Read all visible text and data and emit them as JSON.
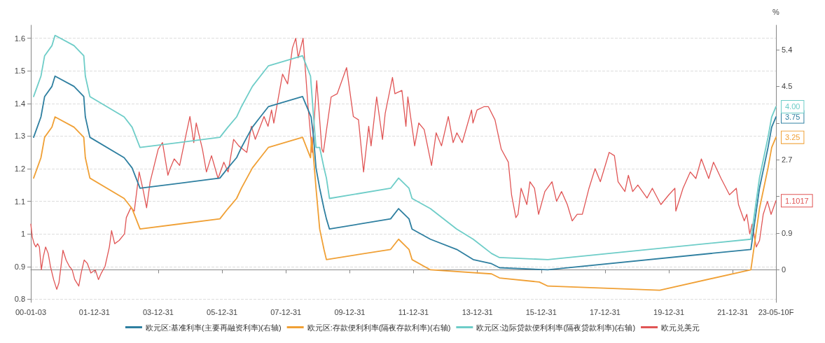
{
  "chart_data": {
    "type": "line",
    "y2label": "%",
    "legend": "bottom",
    "grid": "y",
    "marker": "none",
    "line_style": "solid",
    "xlim": [
      "2000-01-03",
      "2023-05-10"
    ],
    "xticks": [
      {
        "value": "2000-01-03",
        "label": "00-01-03"
      },
      {
        "value": "2001-12-31",
        "label": "01-12-31"
      },
      {
        "value": "2003-12-31",
        "label": "03-12-31"
      },
      {
        "value": "2005-12-31",
        "label": "05-12-31"
      },
      {
        "value": "2007-12-31",
        "label": "07-12-31"
      },
      {
        "value": "2009-12-31",
        "label": "09-12-31"
      },
      {
        "value": "2011-12-31",
        "label": "11-12-31"
      },
      {
        "value": "2013-12-31",
        "label": "13-12-31"
      },
      {
        "value": "2015-12-31",
        "label": "15-12-31"
      },
      {
        "value": "2017-12-31",
        "label": "17-12-31"
      },
      {
        "value": "2019-12-31",
        "label": "19-12-31"
      },
      {
        "value": "2021-12-31",
        "label": "21-12-31"
      },
      {
        "value": "2023-05-10",
        "label": "23-05-10F"
      }
    ],
    "ylim": [
      0.79,
      1.64
    ],
    "yticks": [
      0.8,
      0.9,
      1,
      1.1,
      1.2,
      1.3,
      1.4,
      1.5,
      1.6
    ],
    "y2lim": [
      -0.8,
      6.0
    ],
    "y2ticks": [
      0,
      0.9,
      {
        "value": 1.8,
        "label": null
      },
      2.7,
      {
        "value": 3.6,
        "label": null
      },
      4.5,
      5.4
    ],
    "series": [
      {
        "name": "欧元区:基准利率(主要再融资利率)(右轴)",
        "color": "#2e7fa0",
        "axis": "y2",
        "x": [
          "2000-02-04",
          "2000-03-17",
          "2000-04-28",
          "2000-06-09",
          "2000-09-01",
          "2000-10-06",
          "2001-05-11",
          "2001-08-31",
          "2001-09-18",
          "2001-11-09",
          "2002-12-06",
          "2003-03-07",
          "2003-06-06",
          "2005-12-06",
          "2006-03-08",
          "2006-06-15",
          "2006-08-09",
          "2006-10-11",
          "2006-12-13",
          "2007-03-14",
          "2007-06-13",
          "2008-07-09",
          "2008-10-15",
          "2008-11-12",
          "2008-12-10",
          "2009-01-21",
          "2009-03-11",
          "2009-04-08",
          "2009-05-13",
          "2011-04-13",
          "2011-07-13",
          "2011-11-09",
          "2011-12-14",
          "2012-07-11",
          "2013-05-08",
          "2013-11-13",
          "2014-06-11",
          "2014-09-10",
          "2016-03-16",
          "2022-07-27",
          "2022-09-14",
          "2022-11-02",
          "2022-12-21",
          "2023-02-08",
          "2023-03-22",
          "2023-05-10"
        ],
        "values": [
          3.25,
          3.5,
          3.75,
          4.25,
          4.5,
          4.75,
          4.5,
          4.25,
          3.75,
          3.25,
          2.75,
          2.5,
          2.0,
          2.25,
          2.5,
          2.75,
          3.0,
          3.25,
          3.5,
          3.75,
          4.0,
          4.25,
          3.75,
          3.25,
          2.5,
          2.0,
          1.5,
          1.25,
          1.0,
          1.25,
          1.5,
          1.25,
          1.0,
          0.75,
          0.5,
          0.25,
          0.15,
          0.05,
          0.0,
          0.5,
          1.25,
          2.0,
          2.5,
          3.0,
          3.5,
          3.75
        ],
        "value_labels": [
          null,
          null,
          null,
          null,
          null,
          null,
          null,
          null,
          null,
          null,
          null,
          null,
          null,
          null,
          null,
          null,
          null,
          null,
          null,
          null,
          null,
          null,
          null,
          null,
          null,
          null,
          null,
          null,
          null,
          null,
          null,
          null,
          null,
          null,
          null,
          null,
          null,
          null,
          null,
          null,
          null,
          null,
          null,
          null,
          null,
          "3.75"
        ]
      },
      {
        "name": "欧元区:存款便利利率(隔夜存款利率)(右轴)",
        "color": "#f0a035",
        "axis": "y2",
        "x": [
          "2000-02-04",
          "2000-03-17",
          "2000-04-28",
          "2000-06-09",
          "2000-09-01",
          "2000-10-06",
          "2001-05-11",
          "2001-08-31",
          "2001-09-18",
          "2001-11-09",
          "2002-12-06",
          "2003-03-07",
          "2003-06-06",
          "2005-12-06",
          "2006-03-08",
          "2006-06-15",
          "2006-08-09",
          "2006-10-11",
          "2006-12-13",
          "2007-03-14",
          "2007-06-13",
          "2008-07-09",
          "2008-10-08",
          "2008-10-20",
          "2008-11-12",
          "2008-12-10",
          "2009-01-21",
          "2009-03-11",
          "2009-04-08",
          "2011-04-13",
          "2011-07-13",
          "2011-11-09",
          "2011-12-14",
          "2012-07-11",
          "2014-06-11",
          "2014-09-10",
          "2015-12-09",
          "2016-03-16",
          "2019-09-18",
          "2022-07-27",
          "2022-09-14",
          "2022-11-02",
          "2022-12-21",
          "2023-02-08",
          "2023-03-22",
          "2023-05-10"
        ],
        "values": [
          2.25,
          2.5,
          2.75,
          3.25,
          3.5,
          3.75,
          3.5,
          3.25,
          2.75,
          2.25,
          1.75,
          1.5,
          1.0,
          1.25,
          1.5,
          1.75,
          2.0,
          2.25,
          2.5,
          2.75,
          3.0,
          3.25,
          2.75,
          3.25,
          2.75,
          2.0,
          1.0,
          0.5,
          0.25,
          0.5,
          0.75,
          0.5,
          0.25,
          0.0,
          -0.1,
          -0.2,
          -0.3,
          -0.4,
          -0.5,
          0.0,
          0.75,
          1.5,
          2.0,
          2.5,
          3.0,
          3.25
        ],
        "value_labels": [
          null,
          null,
          null,
          null,
          null,
          null,
          null,
          null,
          null,
          null,
          null,
          null,
          null,
          null,
          null,
          null,
          null,
          null,
          null,
          null,
          null,
          null,
          null,
          null,
          null,
          null,
          null,
          null,
          null,
          null,
          null,
          null,
          null,
          null,
          null,
          null,
          null,
          null,
          null,
          null,
          null,
          null,
          null,
          null,
          null,
          "3.25"
        ]
      },
      {
        "name": "欧元区:边际贷款便利利率(隔夜贷款利率)(右轴)",
        "color": "#6ecdc8",
        "axis": "y2",
        "x": [
          "2000-02-04",
          "2000-03-17",
          "2000-04-28",
          "2000-06-09",
          "2000-09-01",
          "2000-10-06",
          "2001-05-11",
          "2001-08-31",
          "2001-09-18",
          "2001-11-09",
          "2002-12-06",
          "2003-03-07",
          "2003-06-06",
          "2005-12-06",
          "2006-03-08",
          "2006-06-15",
          "2006-08-09",
          "2006-10-11",
          "2006-12-13",
          "2007-03-14",
          "2007-06-13",
          "2008-07-09",
          "2008-10-08",
          "2008-11-12",
          "2008-12-10",
          "2009-01-21",
          "2009-03-11",
          "2009-04-08",
          "2009-05-13",
          "2011-04-13",
          "2011-07-13",
          "2011-11-09",
          "2011-12-14",
          "2012-07-11",
          "2013-05-08",
          "2013-11-13",
          "2014-06-11",
          "2014-09-10",
          "2016-03-16",
          "2022-07-27",
          "2022-09-14",
          "2022-11-02",
          "2022-12-21",
          "2023-02-08",
          "2023-03-22",
          "2023-05-10"
        ],
        "values": [
          4.25,
          4.5,
          4.75,
          5.25,
          5.5,
          5.75,
          5.5,
          5.25,
          4.75,
          4.25,
          3.75,
          3.5,
          3.0,
          3.25,
          3.5,
          3.75,
          4.0,
          4.25,
          4.5,
          4.75,
          5.0,
          5.25,
          4.75,
          3.75,
          3.0,
          3.0,
          2.5,
          2.25,
          1.75,
          2.0,
          2.25,
          2.0,
          1.75,
          1.5,
          1.0,
          0.75,
          0.4,
          0.3,
          0.25,
          0.75,
          1.5,
          2.25,
          2.75,
          3.25,
          3.75,
          4.0
        ],
        "value_labels": [
          null,
          null,
          null,
          null,
          null,
          null,
          null,
          null,
          null,
          null,
          null,
          null,
          null,
          null,
          null,
          null,
          null,
          null,
          null,
          null,
          null,
          null,
          null,
          null,
          null,
          null,
          null,
          null,
          null,
          null,
          null,
          null,
          null,
          null,
          null,
          null,
          null,
          null,
          null,
          null,
          null,
          null,
          null,
          null,
          null,
          "4.00"
        ]
      },
      {
        "name": "欧元兑美元",
        "color": "#e05555",
        "x": [
          "2000-01-03",
          "2000-01-20",
          "2000-02-10",
          "2000-03-01",
          "2000-03-20",
          "2000-04-10",
          "2000-05-03",
          "2000-05-25",
          "2000-06-20",
          "2000-07-20",
          "2000-08-15",
          "2000-09-20",
          "2000-10-26",
          "2000-11-20",
          "2001-01-05",
          "2001-02-10",
          "2001-03-20",
          "2001-04-20",
          "2001-05-20",
          "2001-07-05",
          "2001-08-01",
          "2001-09-05",
          "2001-10-10",
          "2001-11-20",
          "2002-01-10",
          "2002-02-15",
          "2002-03-20",
          "2002-05-01",
          "2002-06-20",
          "2002-07-15",
          "2002-08-20",
          "2002-10-10",
          "2002-12-10",
          "2002-12-31",
          "2003-02-20",
          "2003-04-01",
          "2003-05-27",
          "2003-07-15",
          "2003-08-20",
          "2003-09-30",
          "2003-12-31",
          "2004-02-18",
          "2004-04-20",
          "2004-05-15",
          "2004-07-01",
          "2004-09-01",
          "2004-11-10",
          "2004-12-28",
          "2005-02-10",
          "2005-03-10",
          "2005-05-20",
          "2005-07-05",
          "2005-09-01",
          "2005-11-15",
          "2006-01-20",
          "2006-03-10",
          "2006-05-12",
          "2006-07-10",
          "2006-10-10",
          "2006-12-01",
          "2007-01-15",
          "2007-04-25",
          "2007-06-10",
          "2007-07-20",
          "2007-08-15",
          "2007-11-23",
          "2008-01-20",
          "2008-03-15",
          "2008-04-22",
          "2008-05-20",
          "2008-07-15",
          "2008-09-10",
          "2008-10-27",
          "2008-12-18",
          "2009-02-15",
          "2009-03-04",
          "2009-06-01",
          "2009-08-10",
          "2009-11-25",
          "2010-02-10",
          "2010-04-10",
          "2010-06-07",
          "2010-08-05",
          "2010-09-01",
          "2010-11-04",
          "2011-01-10",
          "2011-02-10",
          "2011-05-04",
          "2011-06-01",
          "2011-08-20",
          "2011-10-05",
          "2011-10-27",
          "2012-01-13",
          "2012-02-29",
          "2012-05-01",
          "2012-07-24",
          "2012-09-15",
          "2012-11-15",
          "2013-02-01",
          "2013-03-28",
          "2013-05-10",
          "2013-07-10",
          "2013-10-25",
          "2013-11-10",
          "2013-12-27",
          "2014-03-15",
          "2014-05-06",
          "2014-07-20",
          "2014-09-30",
          "2014-12-20",
          "2015-01-26",
          "2015-03-16",
          "2015-04-10",
          "2015-05-15",
          "2015-07-20",
          "2015-08-24",
          "2015-10-15",
          "2015-12-01",
          "2016-02-11",
          "2016-05-03",
          "2016-06-24",
          "2016-08-20",
          "2016-10-25",
          "2016-12-20",
          "2017-02-15",
          "2017-04-15",
          "2017-06-30",
          "2017-09-08",
          "2017-11-07",
          "2018-02-16",
          "2018-04-17",
          "2018-05-29",
          "2018-08-15",
          "2018-09-24",
          "2018-11-12",
          "2019-01-10",
          "2019-04-25",
          "2019-06-25",
          "2019-10-01",
          "2019-12-31",
          "2020-03-09",
          "2020-03-20",
          "2020-06-10",
          "2020-09-01",
          "2020-11-04",
          "2021-01-06",
          "2021-03-31",
          "2021-05-25",
          "2021-08-20",
          "2021-11-24",
          "2022-02-10",
          "2022-03-07",
          "2022-05-12",
          "2022-06-10",
          "2022-07-14",
          "2022-08-10",
          "2022-09-27",
          "2022-11-03",
          "2022-12-15",
          "2023-02-01",
          "2023-03-15",
          "2023-05-10"
        ],
        "values": [
          1.03,
          0.99,
          0.97,
          0.96,
          0.97,
          0.96,
          0.89,
          0.93,
          0.96,
          0.94,
          0.9,
          0.86,
          0.83,
          0.85,
          0.95,
          0.92,
          0.9,
          0.89,
          0.86,
          0.84,
          0.88,
          0.92,
          0.91,
          0.88,
          0.89,
          0.86,
          0.88,
          0.9,
          0.96,
          1.01,
          0.97,
          0.98,
          1.0,
          1.05,
          1.08,
          1.07,
          1.19,
          1.13,
          1.08,
          1.16,
          1.26,
          1.28,
          1.18,
          1.2,
          1.23,
          1.21,
          1.3,
          1.36,
          1.28,
          1.34,
          1.26,
          1.19,
          1.24,
          1.17,
          1.22,
          1.19,
          1.29,
          1.27,
          1.25,
          1.33,
          1.29,
          1.36,
          1.33,
          1.38,
          1.34,
          1.49,
          1.46,
          1.57,
          1.6,
          1.54,
          1.6,
          1.39,
          1.25,
          1.47,
          1.26,
          1.25,
          1.42,
          1.43,
          1.51,
          1.36,
          1.35,
          1.19,
          1.33,
          1.27,
          1.42,
          1.29,
          1.37,
          1.48,
          1.43,
          1.44,
          1.33,
          1.42,
          1.27,
          1.34,
          1.32,
          1.21,
          1.31,
          1.27,
          1.36,
          1.28,
          1.31,
          1.28,
          1.38,
          1.34,
          1.38,
          1.39,
          1.39,
          1.35,
          1.26,
          1.22,
          1.12,
          1.05,
          1.06,
          1.14,
          1.09,
          1.16,
          1.14,
          1.06,
          1.13,
          1.16,
          1.1,
          1.13,
          1.09,
          1.04,
          1.06,
          1.06,
          1.14,
          1.2,
          1.16,
          1.25,
          1.24,
          1.16,
          1.13,
          1.18,
          1.13,
          1.15,
          1.11,
          1.14,
          1.09,
          1.12,
          1.14,
          1.07,
          1.14,
          1.19,
          1.17,
          1.23,
          1.17,
          1.22,
          1.17,
          1.12,
          1.14,
          1.09,
          1.04,
          1.06,
          1.0,
          1.03,
          0.96,
          0.98,
          1.06,
          1.1,
          1.06,
          1.1017
        ],
        "value_labels": [
          null,
          null,
          null,
          null,
          null,
          null,
          null,
          null,
          null,
          null,
          null,
          null,
          null,
          null,
          null,
          null,
          null,
          null,
          null,
          null,
          null,
          null,
          null,
          null,
          null,
          null,
          null,
          null,
          null,
          null,
          null,
          null,
          null,
          null,
          null,
          null,
          null,
          null,
          null,
          null,
          null,
          null,
          null,
          null,
          null,
          null,
          null,
          null,
          null,
          null,
          null,
          null,
          null,
          null,
          null,
          null,
          null,
          null,
          null,
          null,
          null,
          null,
          null,
          null,
          null,
          null,
          null,
          null,
          null,
          null,
          null,
          null,
          null,
          null,
          null,
          null,
          null,
          null,
          null,
          null,
          null,
          null,
          null,
          null,
          null,
          null,
          null,
          null,
          null,
          null,
          null,
          null,
          null,
          null,
          null,
          null,
          null,
          null,
          null,
          null,
          null,
          null,
          null,
          null,
          null,
          null,
          null,
          null,
          null,
          null,
          null,
          null,
          null,
          null,
          null,
          null,
          null,
          null,
          null,
          null,
          null,
          null,
          null,
          null,
          null,
          null,
          null,
          null,
          null,
          null,
          null,
          null,
          null,
          null,
          null,
          null,
          null,
          null,
          null,
          null,
          null,
          null,
          null,
          null,
          null,
          null,
          null,
          null,
          null,
          null,
          null,
          null,
          null,
          null,
          null,
          null,
          null,
          null,
          null,
          null,
          null,
          "1.1017"
        ]
      }
    ]
  }
}
